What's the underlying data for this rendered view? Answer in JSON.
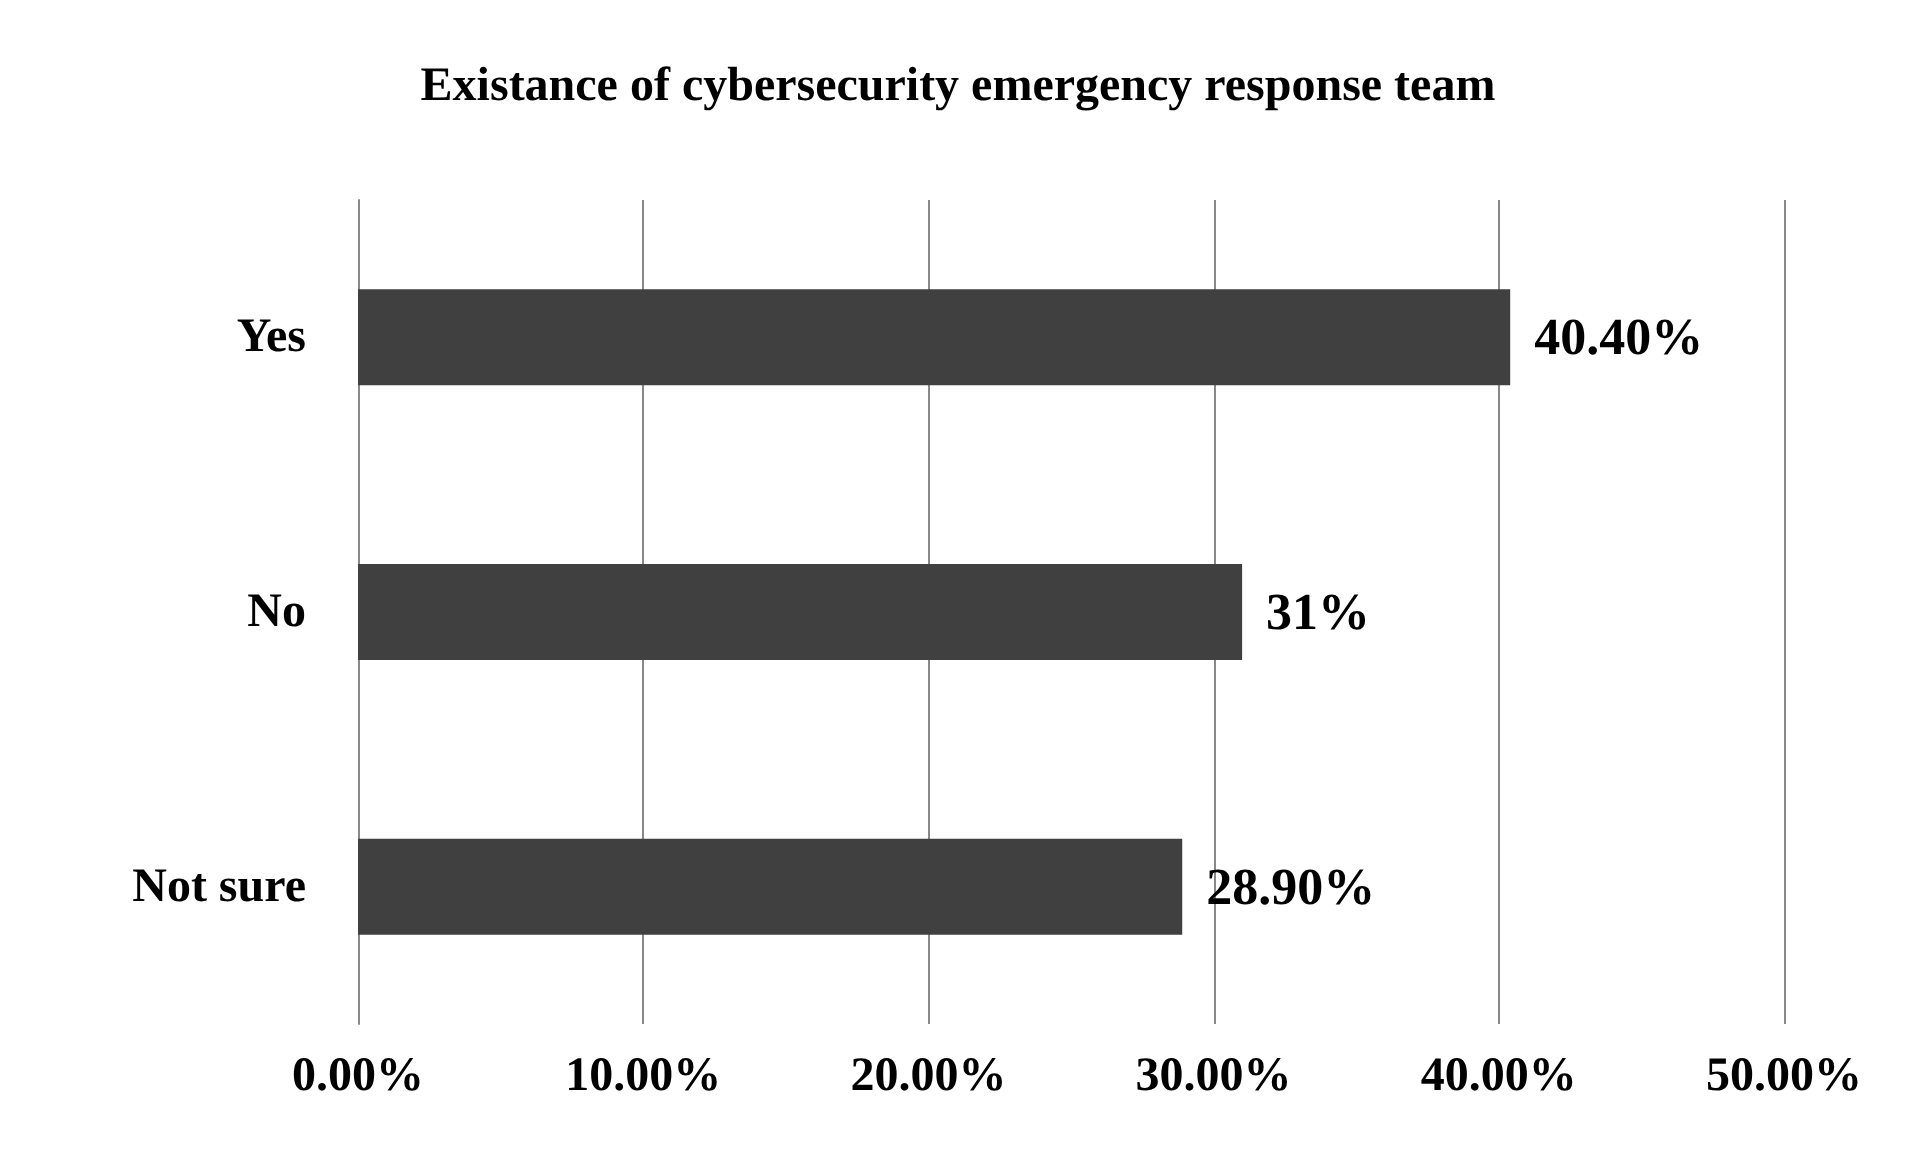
{
  "chart_data": {
    "type": "bar",
    "orientation": "horizontal",
    "title": "Existance of cybersecurity emergency response team",
    "categories": [
      "Yes",
      "No",
      "Not sure"
    ],
    "values": [
      40.4,
      31,
      28.9
    ],
    "color": "#404040",
    "value_labels": [
      "40.40%",
      "31%",
      "28.90%"
    ],
    "xlim": [
      0,
      50
    ],
    "xticks": [
      {
        "value": 0,
        "label": "0.00%"
      },
      {
        "value": 10,
        "label": "10.00%"
      },
      {
        "value": 20,
        "label": "20.00%"
      },
      {
        "value": 30,
        "label": "30.00%"
      },
      {
        "value": 40,
        "label": "40.00%"
      },
      {
        "value": 50,
        "label": "50.00%"
      }
    ],
    "grid": "x"
  }
}
